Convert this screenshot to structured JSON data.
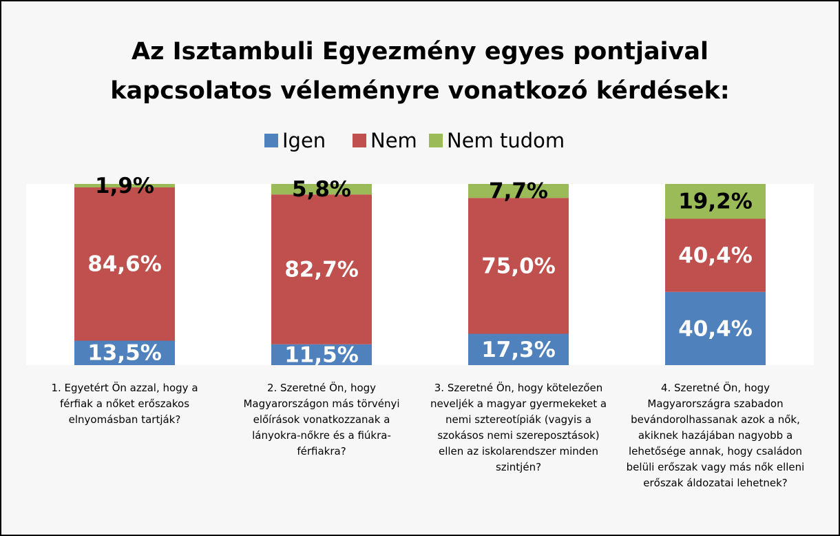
{
  "chart_data": {
    "type": "stacked_bar",
    "title": "Az Isztambuli Egyezmény egyes pontjaival kapcsolatos véleményre vonatkozó kérdések:",
    "categories": [
      "1. Egyetért Ön azzal, hogy a férfiak a nőket erőszakos elnyomásban tartják?",
      "2. Szeretné Ön, hogy Magyarországon más törvényi előírások vonatkozzanak a lányokra-nőkre és a fiúkra-férfiakra?",
      "3. Szeretné Ön, hogy kötelezően neveljék a magyar gyermekeket a nemi sztereotípiák (vagyis a szokásos nemi szereposztások) ellen az iskolarendszer minden szintjén?",
      "4. Szeretné Ön, hogy Magyarországra szabadon bevándorolhassanak azok a nők, akiknek hazájában nagyobb a lehetősége annak, hogy családon belüli erőszak vagy más nők elleni erőszak áldozatai lehetnek?"
    ],
    "series": [
      {
        "name": "Igen",
        "color": "#4f81bd",
        "values": [
          13.5,
          11.5,
          17.3,
          40.4
        ],
        "value_labels": [
          "13,5%",
          "11,5%",
          "17,3%",
          "40,4%"
        ]
      },
      {
        "name": "Nem",
        "color": "#c0504d",
        "values": [
          84.6,
          82.7,
          75.0,
          40.4
        ],
        "value_labels": [
          "84,6%",
          "82,7%",
          "75,0%",
          "40,4%"
        ]
      },
      {
        "name": "Nem tudom",
        "color": "#9bbb59",
        "values": [
          1.9,
          5.8,
          7.7,
          19.2
        ],
        "value_labels": [
          "1,9%",
          "5,8%",
          "7,7%",
          "19,2%"
        ]
      }
    ],
    "ylim": [
      0,
      100
    ]
  }
}
